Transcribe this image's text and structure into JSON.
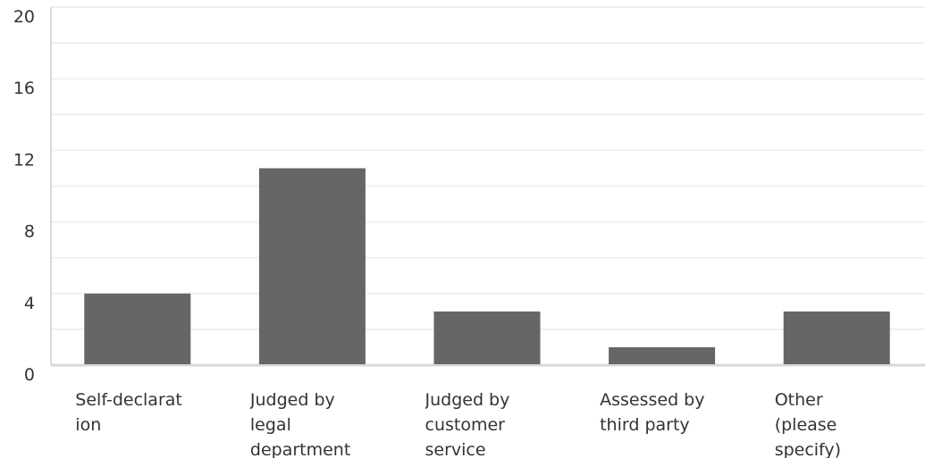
{
  "chart_data": {
    "type": "bar",
    "title": "",
    "xlabel": "",
    "ylabel": "",
    "ylim": [
      0,
      20
    ],
    "yticks": [
      "0",
      "4",
      "8",
      "12",
      "16",
      "20"
    ],
    "grid": true,
    "legend": "none",
    "bar_color": "#666666",
    "grid_color": "#f0f0f0",
    "axis_color": "#d9d9d9",
    "categories": [
      "Self-declarat\nion",
      "Judged by\nlegal\ndepartment",
      "Judged by\ncustomer\nservice",
      "Assessed by\nthird party",
      "Other\n(please\nspecify)"
    ],
    "values": [
      4,
      11,
      3,
      1,
      3
    ]
  }
}
